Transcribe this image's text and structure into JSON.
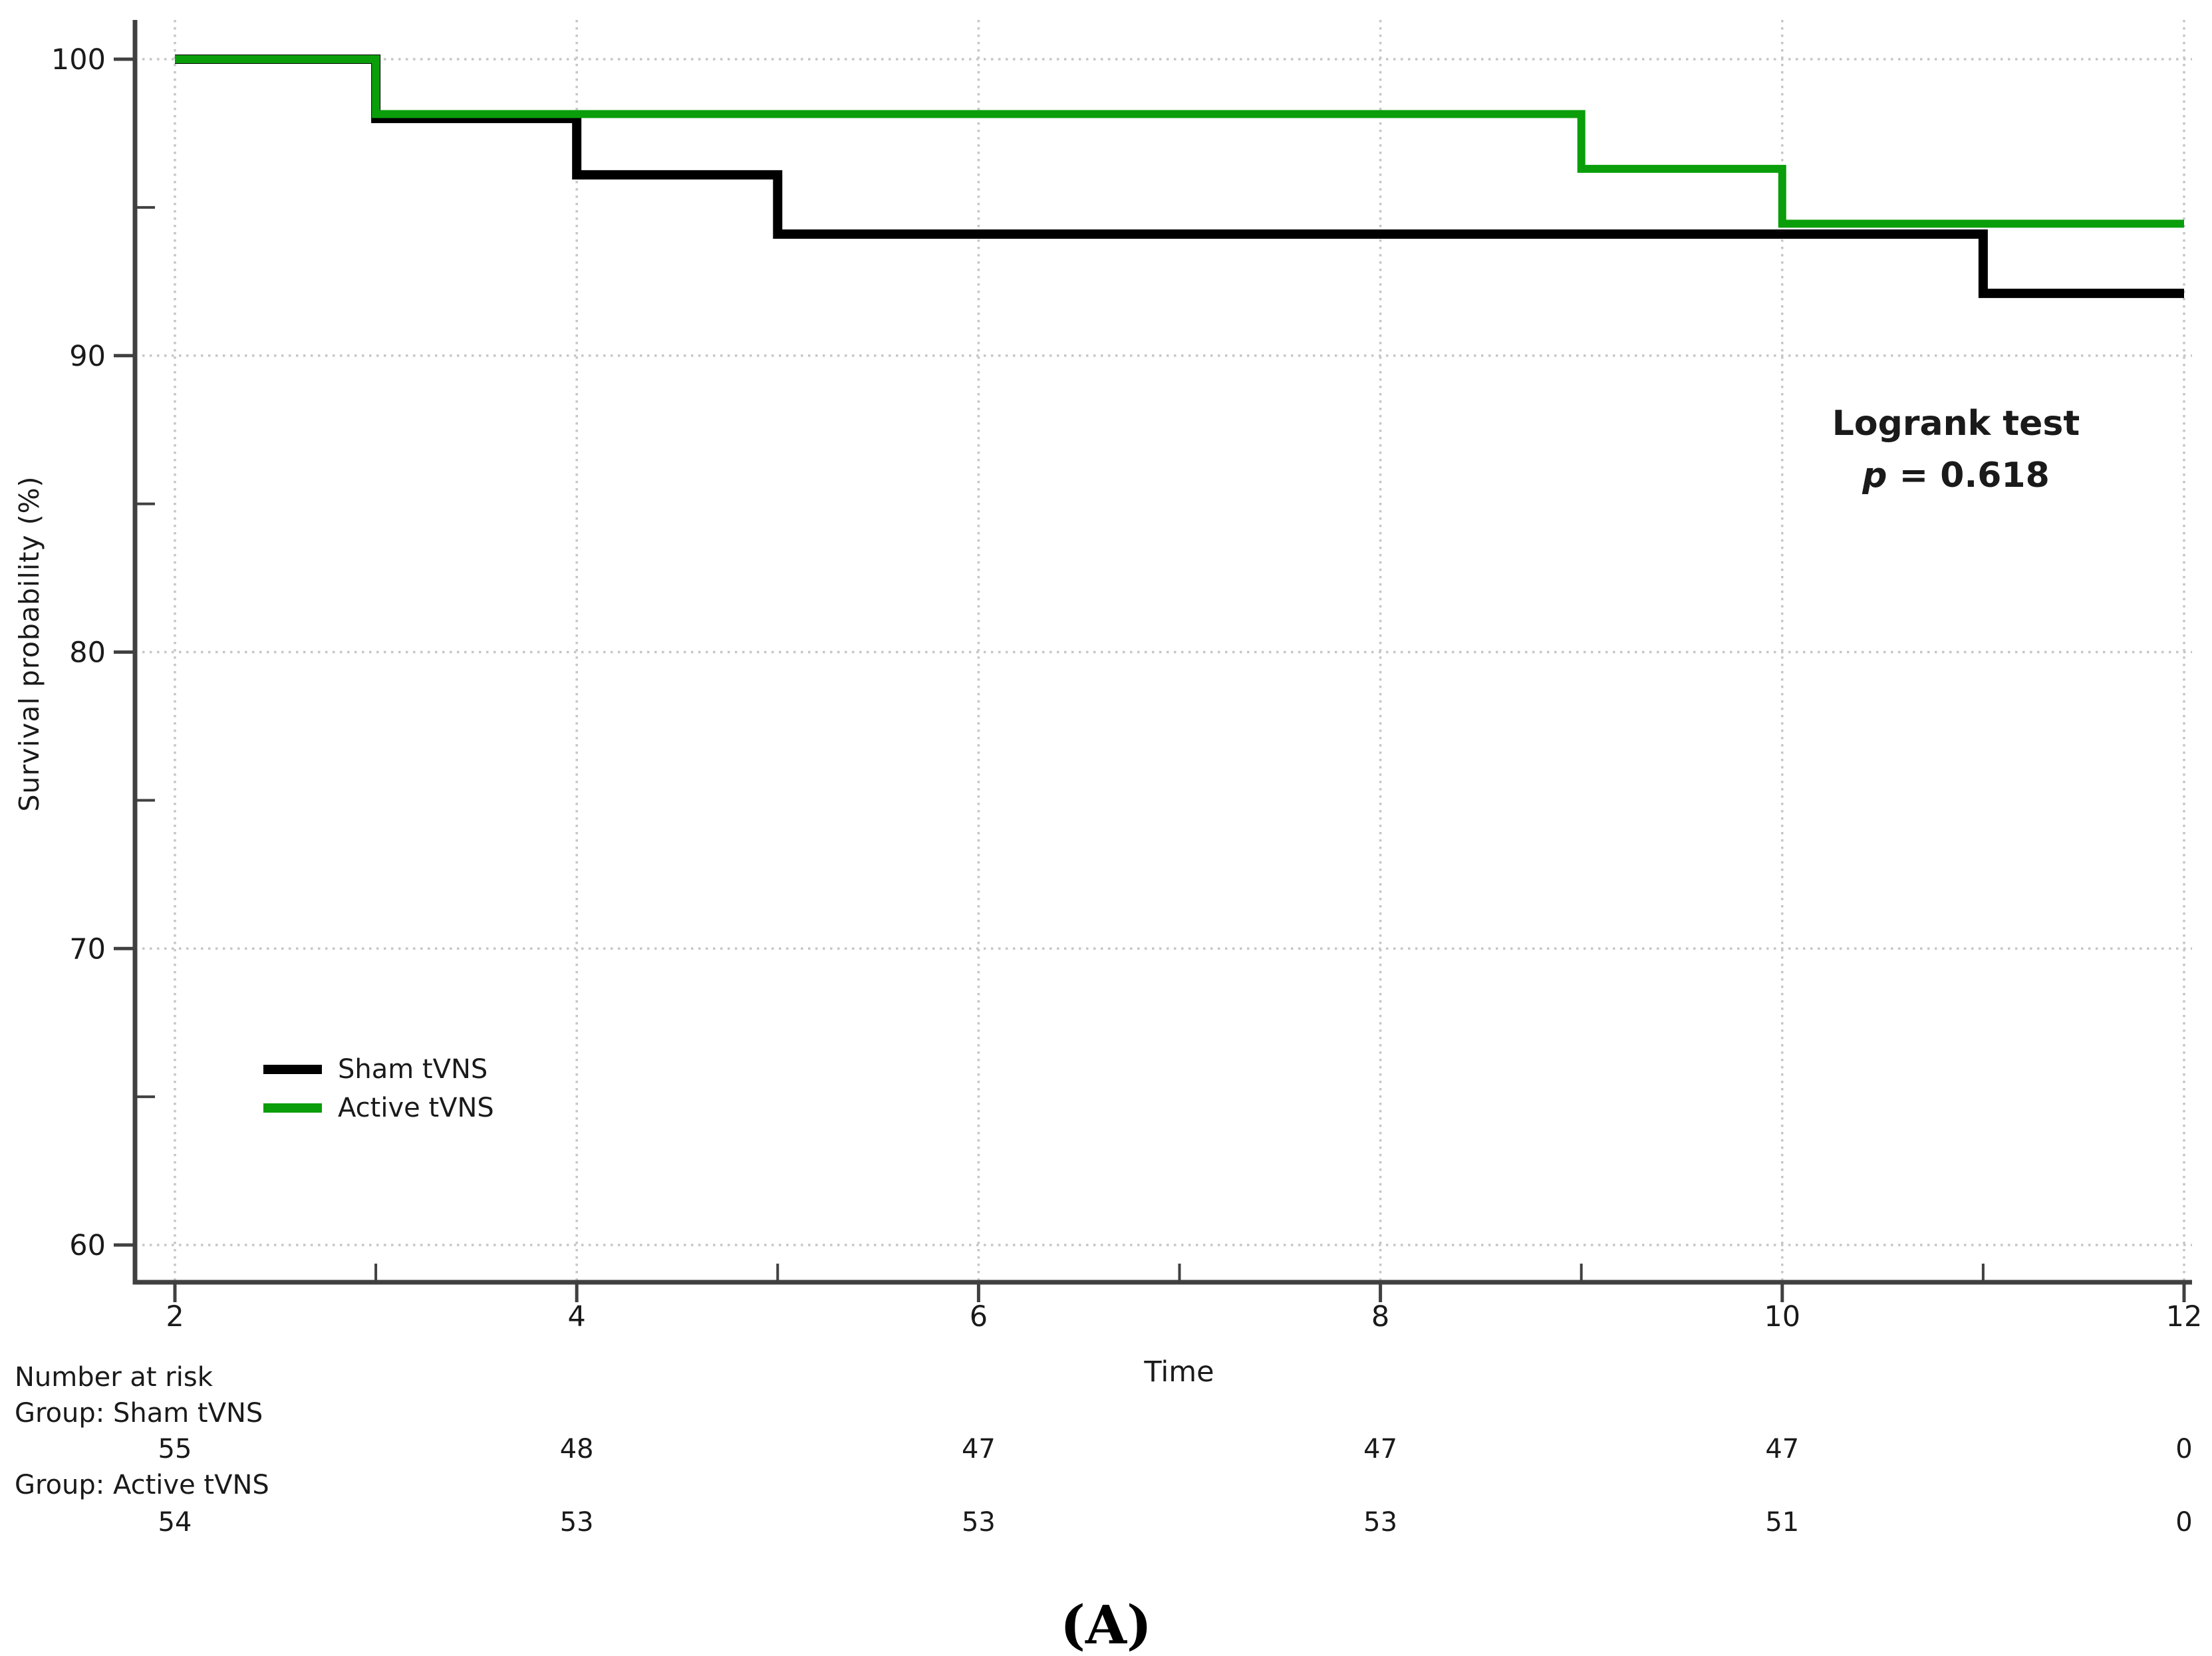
{
  "figure": {
    "caption": "(A)"
  },
  "chart_data": {
    "type": "line",
    "subtype": "kaplan-meier-step",
    "title": "",
    "xlabel": "Time",
    "ylabel": "Survival probability (%)",
    "xlim": [
      2,
      12
    ],
    "ylim": [
      60,
      100
    ],
    "x_major_ticks": [
      2,
      4,
      6,
      8,
      10,
      12
    ],
    "x_minor_ticks": [
      3,
      5,
      7,
      9,
      11
    ],
    "y_major_ticks": [
      100,
      90,
      80,
      70,
      60
    ],
    "y_minor_ticks": [
      95,
      85,
      75,
      65
    ],
    "grid": "dotted major gridlines both axes",
    "colors": {
      "sham": "#000000",
      "active": "#0a9e0a",
      "gridline": "#c6c6c6",
      "axis": "#404040",
      "text": "#1a1a1a"
    },
    "series": [
      {
        "name": "Sham tVNS",
        "color": "#000000",
        "step_points": [
          [
            2,
            100
          ],
          [
            3,
            100
          ],
          [
            3,
            98.0
          ],
          [
            4,
            98.0
          ],
          [
            4,
            96.1
          ],
          [
            5,
            96.1
          ],
          [
            5,
            94.1
          ],
          [
            11,
            94.1
          ],
          [
            11,
            92.1
          ],
          [
            12,
            92.1
          ]
        ]
      },
      {
        "name": "Active tVNS",
        "color": "#0a9e0a",
        "step_points": [
          [
            2,
            100
          ],
          [
            3,
            100
          ],
          [
            3,
            98.15
          ],
          [
            9,
            98.15
          ],
          [
            9,
            96.3
          ],
          [
            10,
            96.3
          ],
          [
            10,
            94.45
          ],
          [
            12,
            94.45
          ]
        ]
      }
    ],
    "legend": {
      "position": "inside bottom-left",
      "items": [
        {
          "label": "Sham tVNS",
          "color": "#000000"
        },
        {
          "label": "Active tVNS",
          "color": "#0a9e0a"
        }
      ]
    },
    "annotation": {
      "line1": "Logrank test",
      "p_symbol": "p",
      "p_rest": "= 0.618"
    },
    "number_at_risk": {
      "title": "Number at risk",
      "times": [
        2,
        4,
        6,
        8,
        10,
        12
      ],
      "groups": [
        {
          "label": "Group: Sham tVNS",
          "counts": [
            "55",
            "48",
            "47",
            "47",
            "47",
            "0"
          ]
        },
        {
          "label": "Group: Active tVNS",
          "counts": [
            "54",
            "53",
            "53",
            "53",
            "51",
            "0"
          ]
        }
      ]
    }
  }
}
